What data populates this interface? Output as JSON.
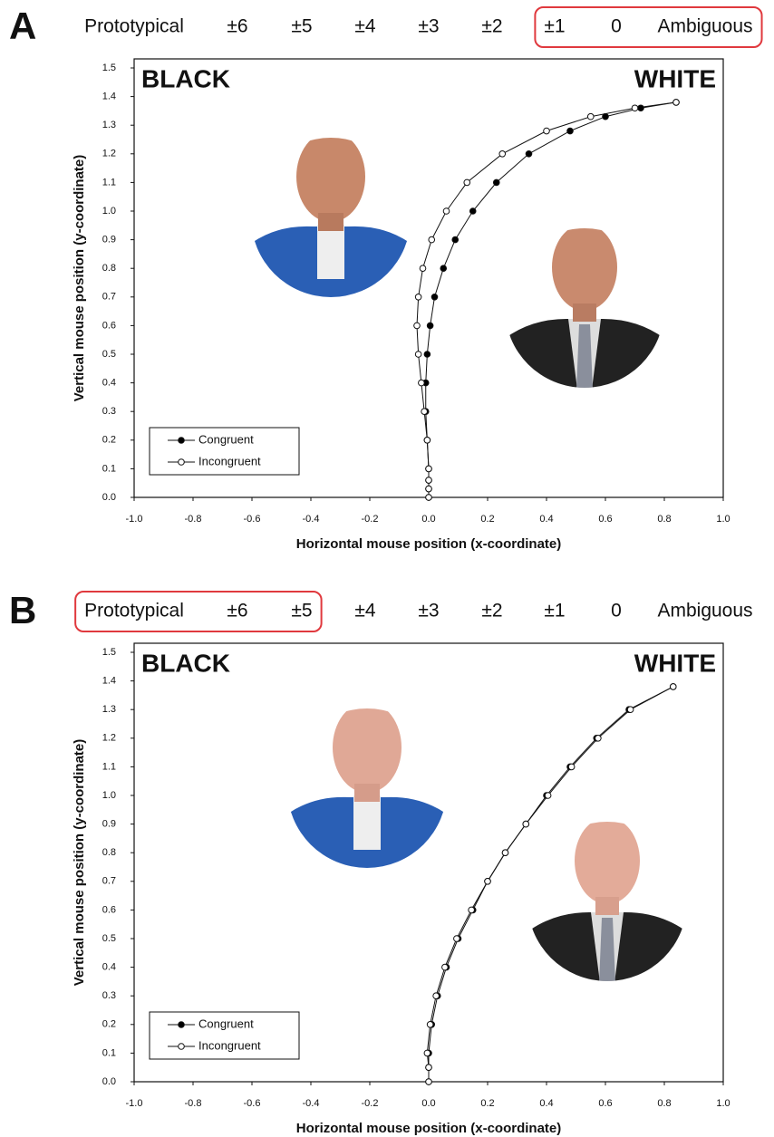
{
  "chart_data": [
    {
      "type": "scatter",
      "panel": "A",
      "scale_labels": [
        "Prototypical",
        "±6",
        "±5",
        "±4",
        "±3",
        "±2",
        "±1",
        "0",
        "Ambiguous"
      ],
      "highlight_range": [
        6,
        8
      ],
      "left_label": "BLACK",
      "right_label": "WHITE",
      "xlabel": "Horizontal mouse position (x-coordinate)",
      "ylabel": "Vertical mouse position (y-coordinate)",
      "xlim": [
        -1,
        1
      ],
      "xticks": [
        {
          "value": -1,
          "label": "-1.0"
        },
        -0.8,
        -0.6,
        -0.4,
        -0.2,
        {
          "value": 0,
          "label": "0.0"
        },
        0.2,
        0.4,
        0.6,
        0.8,
        {
          "value": 1,
          "label": "1.0"
        }
      ],
      "ylim": [
        0,
        1.5
      ],
      "yticks": [
        {
          "value": 0,
          "label": "0.0"
        },
        0.1,
        0.2,
        0.3,
        0.4,
        0.5,
        0.6,
        0.7,
        0.8,
        0.9,
        {
          "value": 1,
          "label": "1.0"
        },
        1.1,
        1.2,
        1.3,
        1.4,
        1.5
      ],
      "series": [
        {
          "name": "Congruent",
          "color": "#000000",
          "x": [
            0,
            0,
            0,
            0,
            -0.005,
            -0.01,
            -0.01,
            -0.005,
            0.005,
            0.02,
            0.05,
            0.09,
            0.15,
            0.23,
            0.34,
            0.48,
            0.6,
            0.72,
            0.84
          ],
          "values": [
            0,
            0.03,
            0.06,
            0.1,
            0.2,
            0.3,
            0.4,
            0.5,
            0.6,
            0.7,
            0.8,
            0.9,
            1.0,
            1.1,
            1.2,
            1.28,
            1.33,
            1.36,
            1.38
          ]
        },
        {
          "name": "Incongruent",
          "color": "#ffffff",
          "x": [
            0,
            0,
            0,
            0,
            -0.005,
            -0.015,
            -0.025,
            -0.035,
            -0.04,
            -0.035,
            -0.02,
            0.01,
            0.06,
            0.13,
            0.25,
            0.4,
            0.55,
            0.7,
            0.84
          ],
          "values": [
            0,
            0.03,
            0.06,
            0.1,
            0.2,
            0.3,
            0.4,
            0.5,
            0.6,
            0.7,
            0.8,
            0.9,
            1.0,
            1.1,
            1.2,
            1.28,
            1.33,
            1.36,
            1.38
          ]
        }
      ]
    },
    {
      "type": "scatter",
      "panel": "B",
      "scale_labels": [
        "Prototypical",
        "±6",
        "±5",
        "±4",
        "±3",
        "±2",
        "±1",
        "0",
        "Ambiguous"
      ],
      "highlight_range": [
        0,
        2
      ],
      "left_label": "BLACK",
      "right_label": "WHITE",
      "xlabel": "Horizontal mouse position (x-coordinate)",
      "ylabel": "Vertical mouse position (y-coordinate)",
      "xlim": [
        -1,
        1
      ],
      "xticks": [
        {
          "value": -1,
          "label": "-1.0"
        },
        -0.8,
        -0.6,
        -0.4,
        -0.2,
        {
          "value": 0,
          "label": "0.0"
        },
        0.2,
        0.4,
        0.6,
        0.8,
        {
          "value": 1,
          "label": "1.0"
        }
      ],
      "ylim": [
        0,
        1.5
      ],
      "yticks": [
        {
          "value": 0,
          "label": "0.0"
        },
        0.1,
        0.2,
        0.3,
        0.4,
        0.5,
        0.6,
        0.7,
        0.8,
        0.9,
        {
          "value": 1,
          "label": "1.0"
        },
        1.1,
        1.2,
        1.3,
        1.4,
        1.5
      ],
      "series": [
        {
          "name": "Congruent",
          "color": "#000000",
          "x": [
            0,
            0,
            0,
            0.01,
            0.03,
            0.06,
            0.1,
            0.15,
            0.2,
            0.26,
            0.33,
            0.4,
            0.48,
            0.57,
            0.68,
            0.83
          ],
          "values": [
            0,
            0.05,
            0.1,
            0.2,
            0.3,
            0.4,
            0.5,
            0.6,
            0.7,
            0.8,
            0.9,
            1.0,
            1.1,
            1.2,
            1.3,
            1.38
          ]
        },
        {
          "name": "Incongruent",
          "color": "#ffffff",
          "x": [
            0,
            0,
            -0.005,
            0.005,
            0.025,
            0.055,
            0.095,
            0.145,
            0.2,
            0.26,
            0.33,
            0.405,
            0.485,
            0.575,
            0.685,
            0.83
          ],
          "values": [
            0,
            0.05,
            0.1,
            0.2,
            0.3,
            0.4,
            0.5,
            0.6,
            0.7,
            0.8,
            0.9,
            1.0,
            1.1,
            1.2,
            1.3,
            1.38
          ]
        }
      ]
    }
  ]
}
